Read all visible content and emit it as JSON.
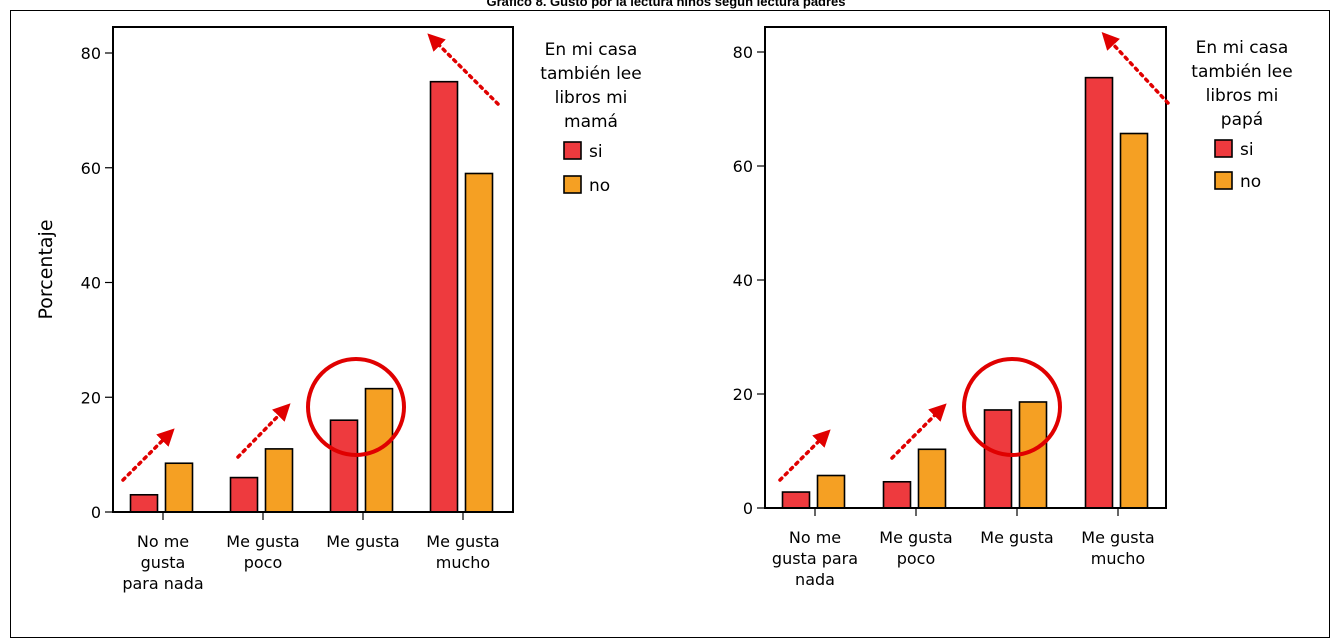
{
  "page_title": "Gráfico 8. Gusto por la lectura niños según lectura padres",
  "colors": {
    "si": "#ee3a3e",
    "no": "#f5a023",
    "annotation": "#e00000"
  },
  "chart_data": [
    {
      "type": "bar",
      "title": "",
      "ylabel": "Porcentaje",
      "xlabel": "",
      "ylim": [
        0,
        80
      ],
      "yticks": [
        0,
        20,
        40,
        60,
        80
      ],
      "categories": [
        [
          "No me",
          "gusta",
          "para nada"
        ],
        [
          "Me gusta",
          "poco"
        ],
        [
          "Me gusta"
        ],
        [
          "Me gusta",
          "mucho"
        ]
      ],
      "series": [
        {
          "name": "si",
          "values": [
            3,
            6,
            16,
            75
          ]
        },
        {
          "name": "no",
          "values": [
            8.5,
            11,
            21.5,
            59
          ]
        }
      ],
      "legend_title": [
        "En mi casa",
        "también lee",
        "libros mi",
        "mamá"
      ],
      "legend_position": "right",
      "annotations": [
        "arrow up-right over No me gusta para nada",
        "arrow up-right over Me gusta poco",
        "circle around Me gusta",
        "arrow up-left over Me gusta mucho"
      ]
    },
    {
      "type": "bar",
      "title": "",
      "ylabel": "",
      "xlabel": "",
      "ylim": [
        0,
        80
      ],
      "yticks": [
        0,
        20,
        40,
        60,
        80
      ],
      "categories": [
        [
          "No me",
          "gusta para",
          "nada"
        ],
        [
          "Me gusta",
          "poco"
        ],
        [
          "Me gusta"
        ],
        [
          "Me gusta",
          "mucho"
        ]
      ],
      "series": [
        {
          "name": "si",
          "values": [
            2.8,
            4.6,
            17.2,
            75.5
          ]
        },
        {
          "name": "no",
          "values": [
            5.7,
            10.3,
            18.6,
            65.7
          ]
        }
      ],
      "legend_title": [
        "En mi casa",
        "también lee",
        "libros mi",
        "papá"
      ],
      "legend_position": "right",
      "annotations": [
        "arrow up-right over No me gusta para nada",
        "arrow up-right over Me gusta poco",
        "circle around Me gusta",
        "arrow up-left over Me gusta mucho"
      ]
    }
  ]
}
